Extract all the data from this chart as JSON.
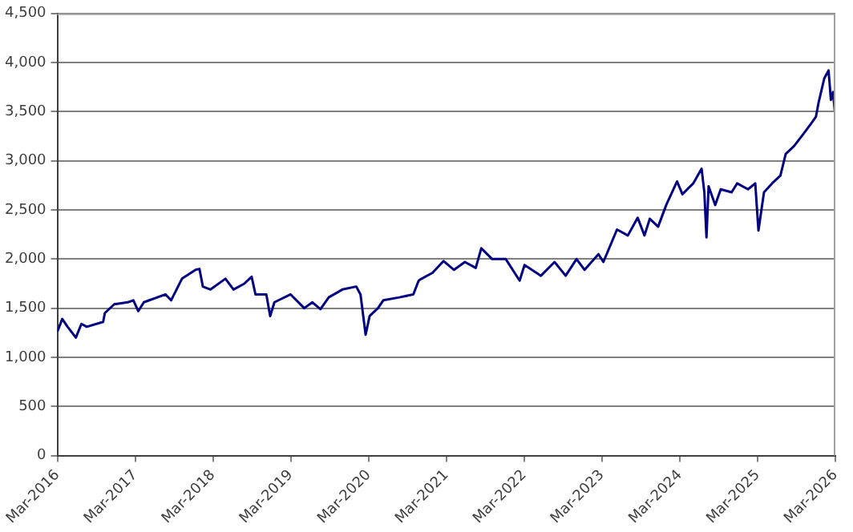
{
  "chart_data": {
    "type": "line",
    "x": [
      "2016-03-01",
      "2016-03-24",
      "2016-04-18",
      "2016-05-27",
      "2016-06-22",
      "2016-07-17",
      "2016-10-02",
      "2016-10-10",
      "2016-11-23",
      "2017-01-26",
      "2017-02-21",
      "2017-03-16",
      "2017-04-11",
      "2017-07-22",
      "2017-08-17",
      "2017-10-07",
      "2017-12-10",
      "2017-12-28",
      "2018-01-13",
      "2018-02-18",
      "2018-04-29",
      "2018-06-06",
      "2018-07-27",
      "2018-08-30",
      "2018-09-17",
      "2018-11-07",
      "2018-11-25",
      "2018-12-15",
      "2019-03-01",
      "2019-05-04",
      "2019-06-11",
      "2019-07-19",
      "2019-08-27",
      "2019-10-30",
      "2020-01-03",
      "2020-01-23",
      "2020-02-16",
      "2020-03-06",
      "2020-04-14",
      "2020-05-09",
      "2020-07-24",
      "2020-09-27",
      "2020-10-22",
      "2020-11-05",
      "2020-12-26",
      "2021-02-16",
      "2021-04-06",
      "2021-05-27",
      "2021-07-17",
      "2021-08-12",
      "2021-10-02",
      "2021-12-05",
      "2022-02-08",
      "2022-03-03",
      "2022-05-19",
      "2022-07-22",
      "2022-09-12",
      "2022-11-02",
      "2022-12-10",
      "2023-02-13",
      "2023-03-08",
      "2023-05-11",
      "2023-07-01",
      "2023-08-16",
      "2023-09-17",
      "2023-10-12",
      "2023-11-20",
      "2023-12-28",
      "2024-02-17",
      "2024-03-13",
      "2024-05-03",
      "2024-06-11",
      "2024-06-24",
      "2024-07-04",
      "2024-07-14",
      "2024-08-14",
      "2024-09-09",
      "2024-10-30",
      "2024-11-25",
      "2025-01-15",
      "2025-02-18",
      "2025-03-05",
      "2025-03-31",
      "2025-05-08",
      "2025-06-16",
      "2025-07-11",
      "2025-08-19",
      "2025-09-27",
      "2025-11-04",
      "2025-11-30",
      "2025-12-12",
      "2026-01-08",
      "2026-01-28",
      "2026-02-08",
      "2026-02-18",
      "2026-02-26"
    ],
    "series": [
      {
        "color": "#000080",
        "values": [
          1260,
          1390,
          1310,
          1200,
          1340,
          1310,
          1360,
          1450,
          1540,
          1560,
          1580,
          1470,
          1560,
          1640,
          1580,
          1800,
          1890,
          1900,
          1720,
          1690,
          1800,
          1690,
          1750,
          1820,
          1640,
          1640,
          1420,
          1560,
          1640,
          1500,
          1560,
          1490,
          1610,
          1690,
          1720,
          1640,
          1230,
          1420,
          1500,
          1580,
          1610,
          1640,
          1780,
          1800,
          1860,
          1980,
          1890,
          1970,
          1910,
          2110,
          2000,
          2000,
          1780,
          1940,
          1830,
          1970,
          1830,
          2000,
          1890,
          2050,
          1970,
          2300,
          2240,
          2420,
          2240,
          2410,
          2330,
          2550,
          2790,
          2660,
          2770,
          2920,
          2680,
          2220,
          2740,
          2550,
          2710,
          2680,
          2770,
          2710,
          2770,
          2290,
          2680,
          2770,
          2850,
          3070,
          3150,
          3260,
          3370,
          3450,
          3590,
          3840,
          3920,
          3620,
          3700,
          3510
        ]
      }
    ],
    "xlim": [
      "2016-03",
      "2026-03"
    ],
    "xticks": [
      {
        "value": "2016-03",
        "label": "Mar-2016"
      },
      {
        "value": "2017-03",
        "label": "Mar-2017"
      },
      {
        "value": "2018-03",
        "label": "Mar-2018"
      },
      {
        "value": "2019-03",
        "label": "Mar-2019"
      },
      {
        "value": "2020-03",
        "label": "Mar-2020"
      },
      {
        "value": "2021-03",
        "label": "Mar-2021"
      },
      {
        "value": "2022-03",
        "label": "Mar-2022"
      },
      {
        "value": "2023-03",
        "label": "Mar-2023"
      },
      {
        "value": "2024-03",
        "label": "Mar-2024"
      },
      {
        "value": "2025-03",
        "label": "Mar-2025"
      },
      {
        "value": "2026-03",
        "label": "Mar-2026"
      }
    ],
    "ylim": [
      0,
      4500
    ],
    "yticks": [
      0,
      500,
      {
        "value": 1000,
        "label": "1,000"
      },
      {
        "value": 1500,
        "label": "1,500"
      },
      {
        "value": 2000,
        "label": "2,000"
      },
      {
        "value": 2500,
        "label": "2,500"
      },
      {
        "value": 3000,
        "label": "3,000"
      },
      {
        "value": 3500,
        "label": "3,500"
      },
      {
        "value": 4000,
        "label": "4,000"
      },
      {
        "value": 4500,
        "label": "4,500"
      }
    ],
    "grid": "y",
    "marker": "none",
    "line_style": "solid"
  }
}
